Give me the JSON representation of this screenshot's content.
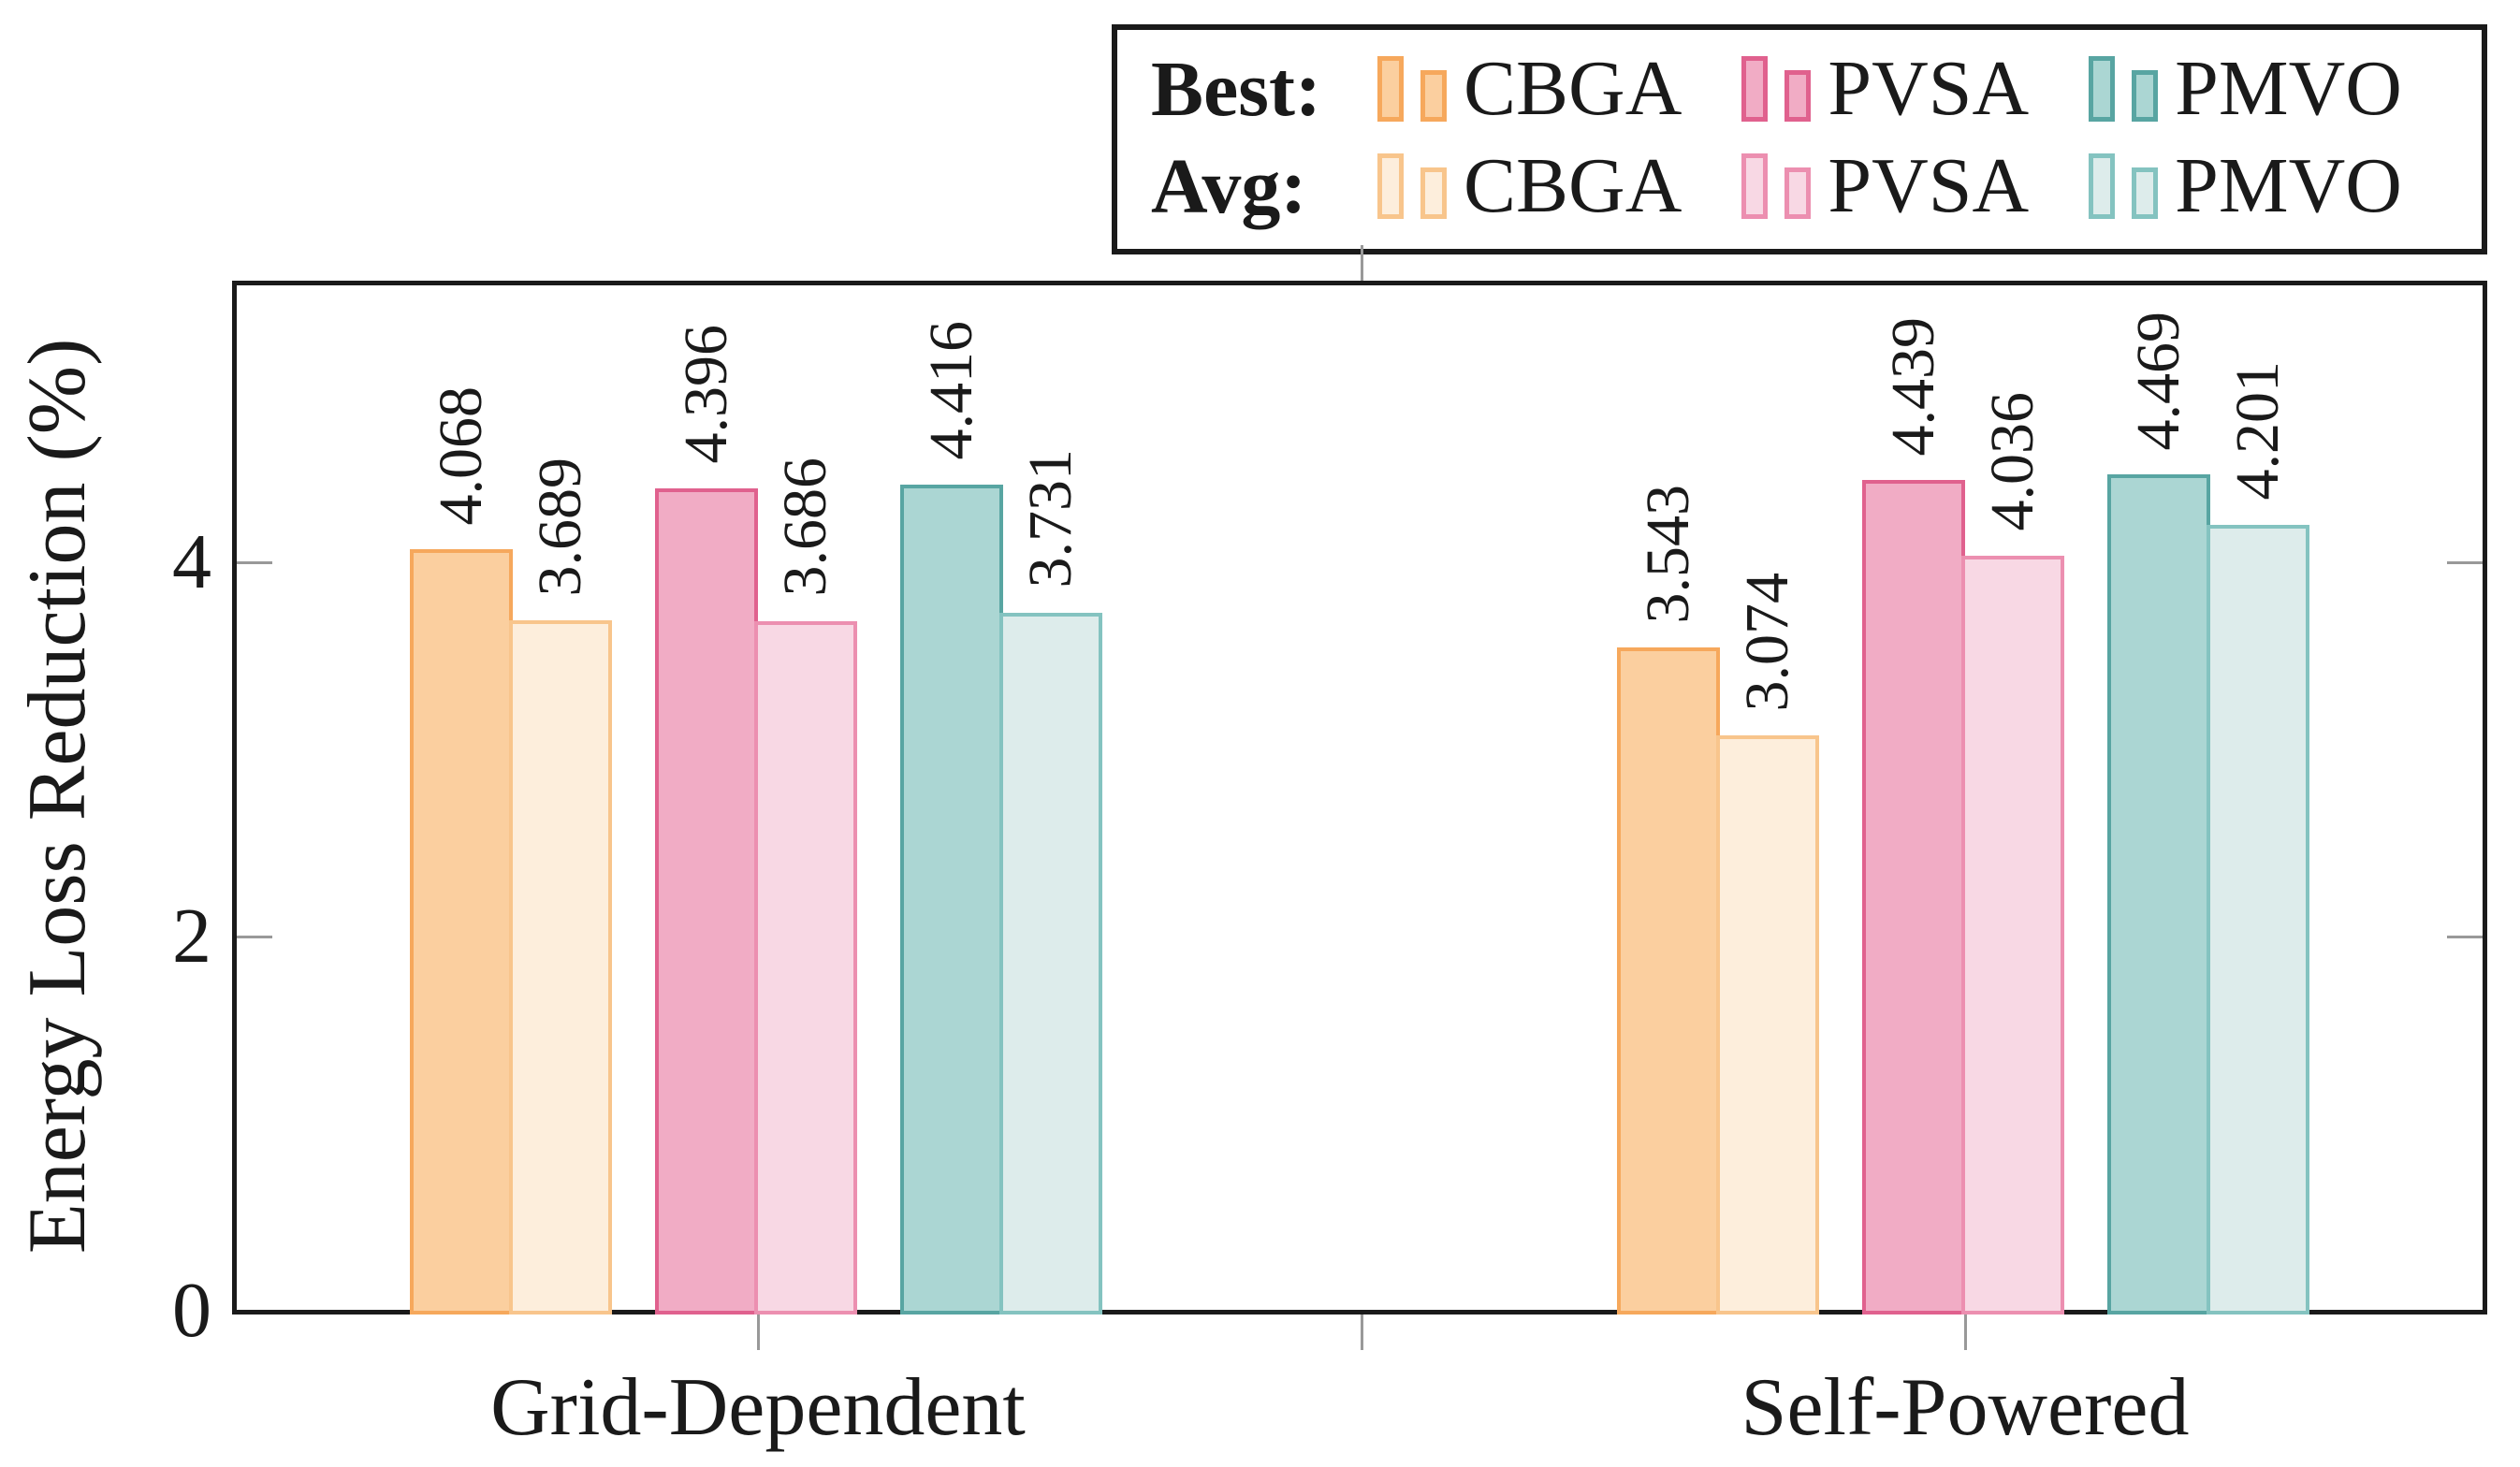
{
  "chart_data": {
    "type": "bar",
    "title": "",
    "ylabel": "Energy Loss Reduction (%)",
    "xlabel": "",
    "ylim": [
      0,
      5.5
    ],
    "yticks": [
      0,
      2,
      4
    ],
    "grid": false,
    "legend_position": "top-right",
    "categories": [
      "Grid-Dependent",
      "Self-Powered"
    ],
    "series": [
      {
        "name": "Best CBGA",
        "stat": "Best",
        "algo": "CBGA",
        "values": [
          4.068,
          3.543
        ]
      },
      {
        "name": "Avg CBGA",
        "stat": "Avg",
        "algo": "CBGA",
        "values": [
          3.689,
          3.074
        ]
      },
      {
        "name": "Best PVSA",
        "stat": "Best",
        "algo": "PVSA",
        "values": [
          4.396,
          4.439
        ]
      },
      {
        "name": "Avg PVSA",
        "stat": "Avg",
        "algo": "PVSA",
        "values": [
          3.686,
          4.036
        ]
      },
      {
        "name": "Best PMVO",
        "stat": "Best",
        "algo": "PMVO",
        "values": [
          4.416,
          4.469
        ]
      },
      {
        "name": "Avg PMVO",
        "stat": "Avg",
        "algo": "PMVO",
        "values": [
          3.731,
          4.201
        ]
      }
    ],
    "bar_value_labels_rotated": true,
    "legend": {
      "rows": [
        {
          "label": "Best:",
          "entries": [
            "CBGA",
            "PVSA",
            "PMVO"
          ]
        },
        {
          "label": "Avg:",
          "entries": [
            "CBGA",
            "PVSA",
            "PMVO"
          ]
        }
      ]
    }
  },
  "colors": {
    "CBGA": {
      "best": {
        "fill": "#FBCF9F",
        "stroke": "#F6A85C"
      },
      "avg": {
        "fill": "#FDEEDC",
        "stroke": "#F8C58C"
      }
    },
    "PVSA": {
      "best": {
        "fill": "#F1ACC5",
        "stroke": "#E0618E"
      },
      "avg": {
        "fill": "#F8D8E4",
        "stroke": "#EC8FB0"
      }
    },
    "PMVO": {
      "best": {
        "fill": "#ABD6D3",
        "stroke": "#58A5A2"
      },
      "avg": {
        "fill": "#DDECEB",
        "stroke": "#84C3C0"
      }
    },
    "axis": "#1a1a1a",
    "tick": "#999999",
    "text": "#1a1a1a",
    "background": "#ffffff"
  }
}
